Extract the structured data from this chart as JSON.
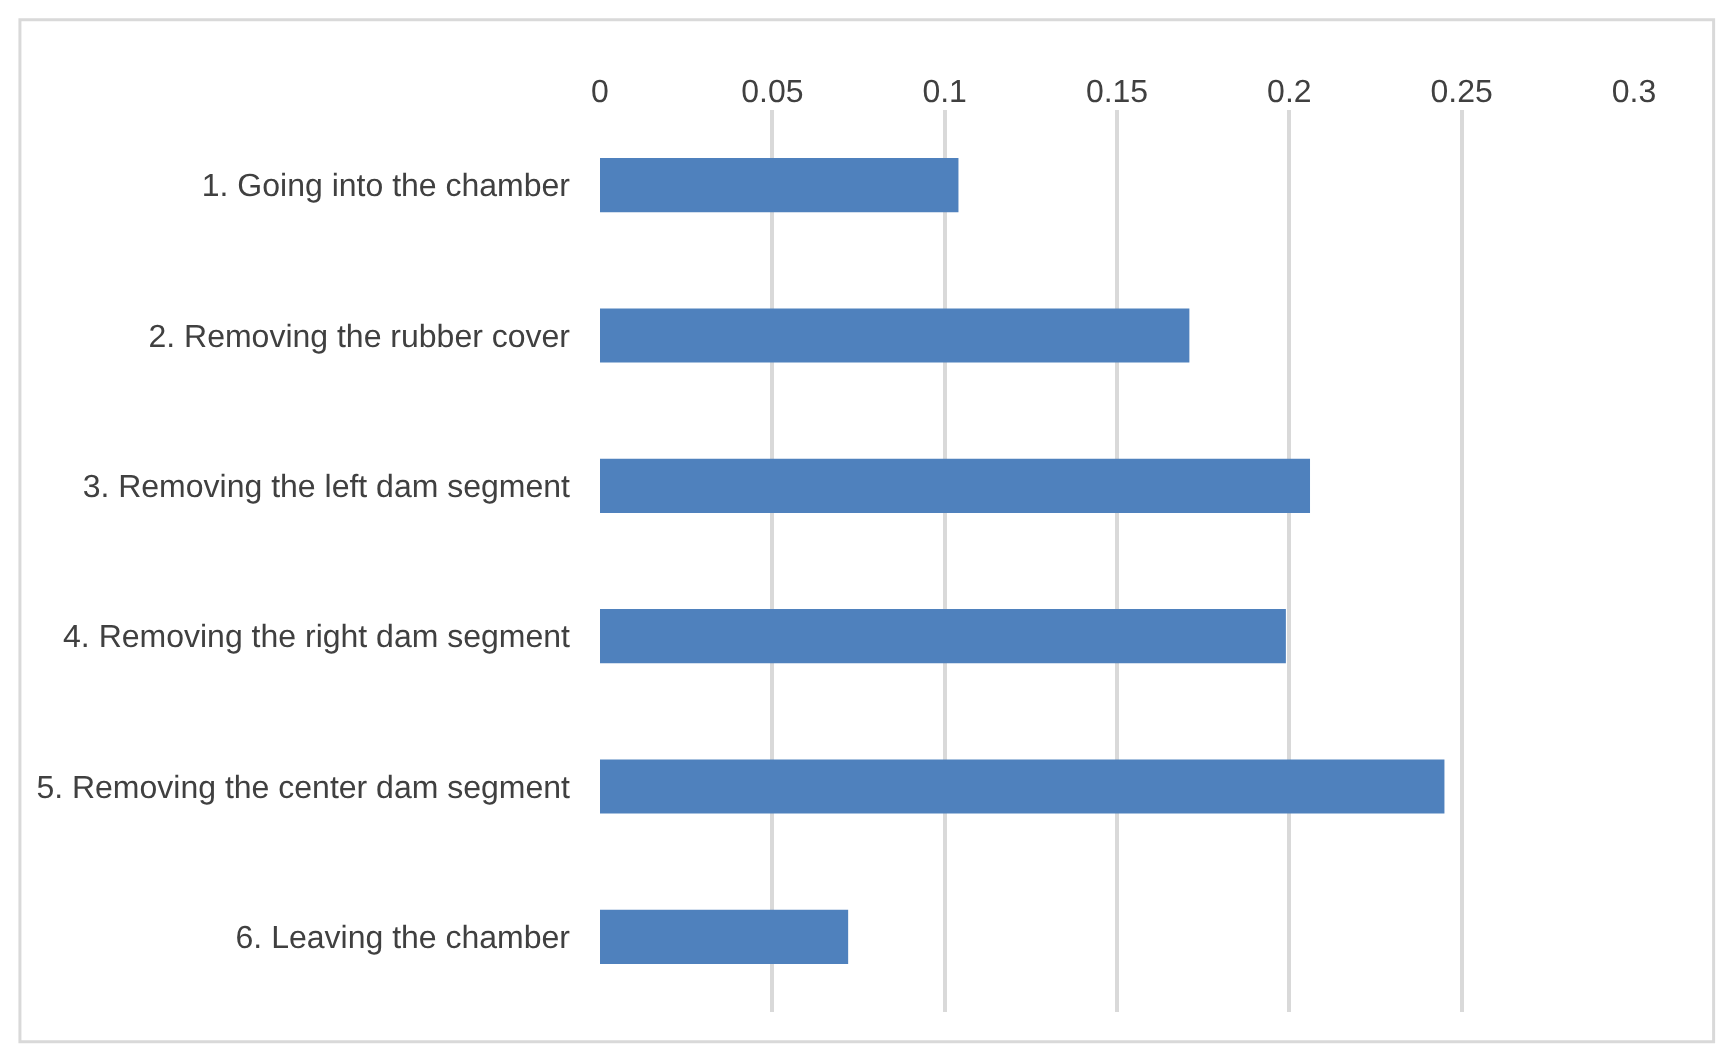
{
  "chart_data": {
    "type": "bar",
    "orientation": "horizontal",
    "categories": [
      "1. Going into the chamber",
      "2. Removing the rubber cover",
      "3. Removing the left dam segment",
      "4. Removing the right dam segment",
      "5. Removing the center dam segment",
      "6. Leaving the chamber"
    ],
    "values": [
      0.104,
      0.171,
      0.206,
      0.199,
      0.245,
      0.072
    ],
    "color": "#4f81bd",
    "xlim": [
      0,
      0.3
    ],
    "xticks": [
      0,
      0.05,
      0.1,
      0.15,
      0.2,
      0.25,
      0.3
    ],
    "grid": "x"
  }
}
